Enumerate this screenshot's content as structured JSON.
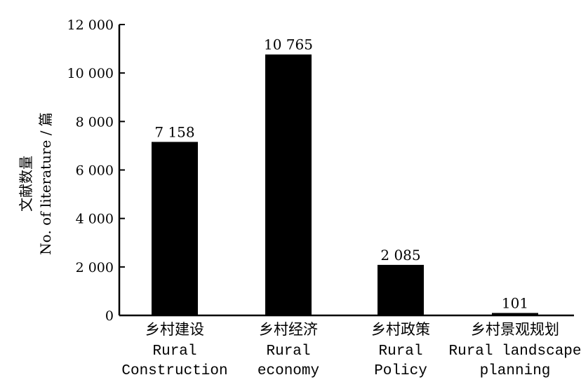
{
  "chart_data": {
    "type": "bar",
    "categories": [
      {
        "zh": "乡村建设",
        "en": [
          "Rural",
          "Construction"
        ]
      },
      {
        "zh": "乡村经济",
        "en": [
          "Rural",
          "economy"
        ]
      },
      {
        "zh": "乡村政策",
        "en": [
          "Rural",
          "Policy"
        ]
      },
      {
        "zh": "乡村景观规划",
        "en": [
          "Rural landscape",
          "planning"
        ]
      }
    ],
    "values": [
      7158,
      10765,
      2085,
      101
    ],
    "value_labels": [
      "7 158",
      "10 765",
      "2 085",
      "101"
    ],
    "ylim": [
      0,
      12000
    ],
    "yticks": [
      0,
      2000,
      4000,
      6000,
      8000,
      10000,
      12000
    ],
    "ytick_labels": [
      "0",
      "2 000",
      "4 000",
      "6 000",
      "8 000",
      "10 000",
      "12 000"
    ],
    "ylabel_zh": "文献数量",
    "ylabel_en": "No. of literature / 篇",
    "bar_color": "#000000",
    "grid": false,
    "legend": "none"
  }
}
